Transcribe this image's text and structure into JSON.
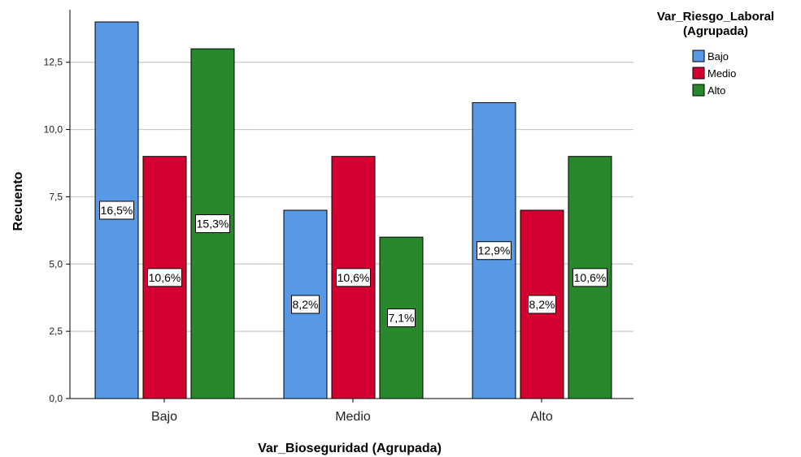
{
  "chart_data": {
    "type": "bar",
    "categories": [
      "Bajo",
      "Medio",
      "Alto"
    ],
    "series": [
      {
        "name": "Bajo",
        "color": "#5799e4",
        "values": [
          14,
          7,
          11
        ],
        "labels": [
          "16,5%",
          "8,2%",
          "12,9%"
        ]
      },
      {
        "name": "Medio",
        "color": "#d40032",
        "values": [
          9,
          9,
          7
        ],
        "labels": [
          "10,6%",
          "10,6%",
          "8,2%"
        ]
      },
      {
        "name": "Alto",
        "color": "#29882b",
        "values": [
          13,
          6,
          9
        ],
        "labels": [
          "15,3%",
          "7,1%",
          "10,6%"
        ]
      }
    ],
    "xlabel": "Var_Bioseguridad (Agrupada)",
    "ylabel": "Recuento",
    "ylim": [
      0,
      14
    ],
    "yticks": [
      "0,0",
      "2,5",
      "5,0",
      "7,5",
      "10,0",
      "12,5"
    ],
    "ytick_values": [
      0,
      2.5,
      5,
      7.5,
      10,
      12.5
    ],
    "legend_title_lines": [
      "Var_Riesgo_Laboral",
      "(Agrupada)"
    ],
    "legend_position": "right",
    "grid": true
  }
}
